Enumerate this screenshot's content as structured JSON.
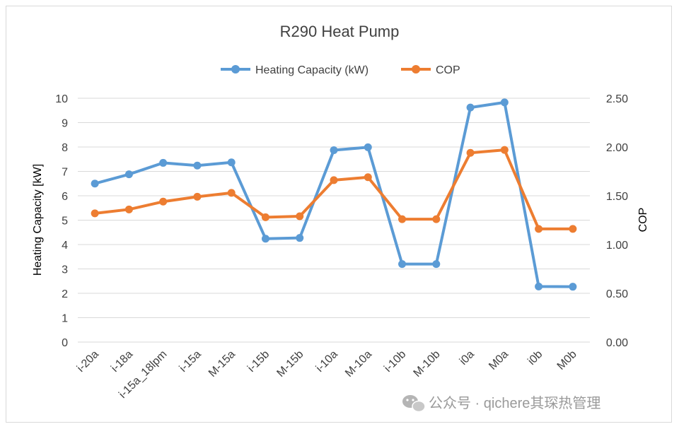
{
  "chart_data": {
    "type": "line",
    "title": "R290 Heat Pump",
    "categories": [
      "i-20a",
      "i-18a",
      "i-15a_18lpm",
      "i-15a",
      "M-15a",
      "i-15b",
      "M-15b",
      "i-10a",
      "M-10a",
      "i-10b",
      "M-10b",
      "i0a",
      "M0a",
      "i0b",
      "M0b"
    ],
    "series": [
      {
        "name": "Heating Capacity (kW)",
        "axis": "left",
        "color": "#5B9BD5",
        "values": [
          6.5,
          6.88,
          7.35,
          7.24,
          7.37,
          4.24,
          4.27,
          7.87,
          7.99,
          3.2,
          3.2,
          9.62,
          9.83,
          2.28,
          2.27
        ]
      },
      {
        "name": "COP",
        "axis": "right",
        "color": "#ED7D31",
        "values": [
          1.32,
          1.36,
          1.44,
          1.49,
          1.53,
          1.28,
          1.29,
          1.66,
          1.69,
          1.26,
          1.26,
          1.94,
          1.97,
          1.16,
          1.16
        ]
      }
    ],
    "ylabel": "Heating Capacity [kW]",
    "y2label": "COP",
    "ylim": [
      0,
      10
    ],
    "y2lim": [
      0,
      2.5
    ],
    "yticks": [
      "0",
      "1",
      "2",
      "3",
      "4",
      "5",
      "6",
      "7",
      "8",
      "9",
      "10"
    ],
    "y2ticks": [
      "0.00",
      "0.50",
      "1.00",
      "1.50",
      "2.00",
      "2.50"
    ],
    "grid": true,
    "legend_position": "top"
  },
  "watermark": {
    "text": "公众号 · qichere其琛热管理",
    "icon": "wechat-icon"
  }
}
